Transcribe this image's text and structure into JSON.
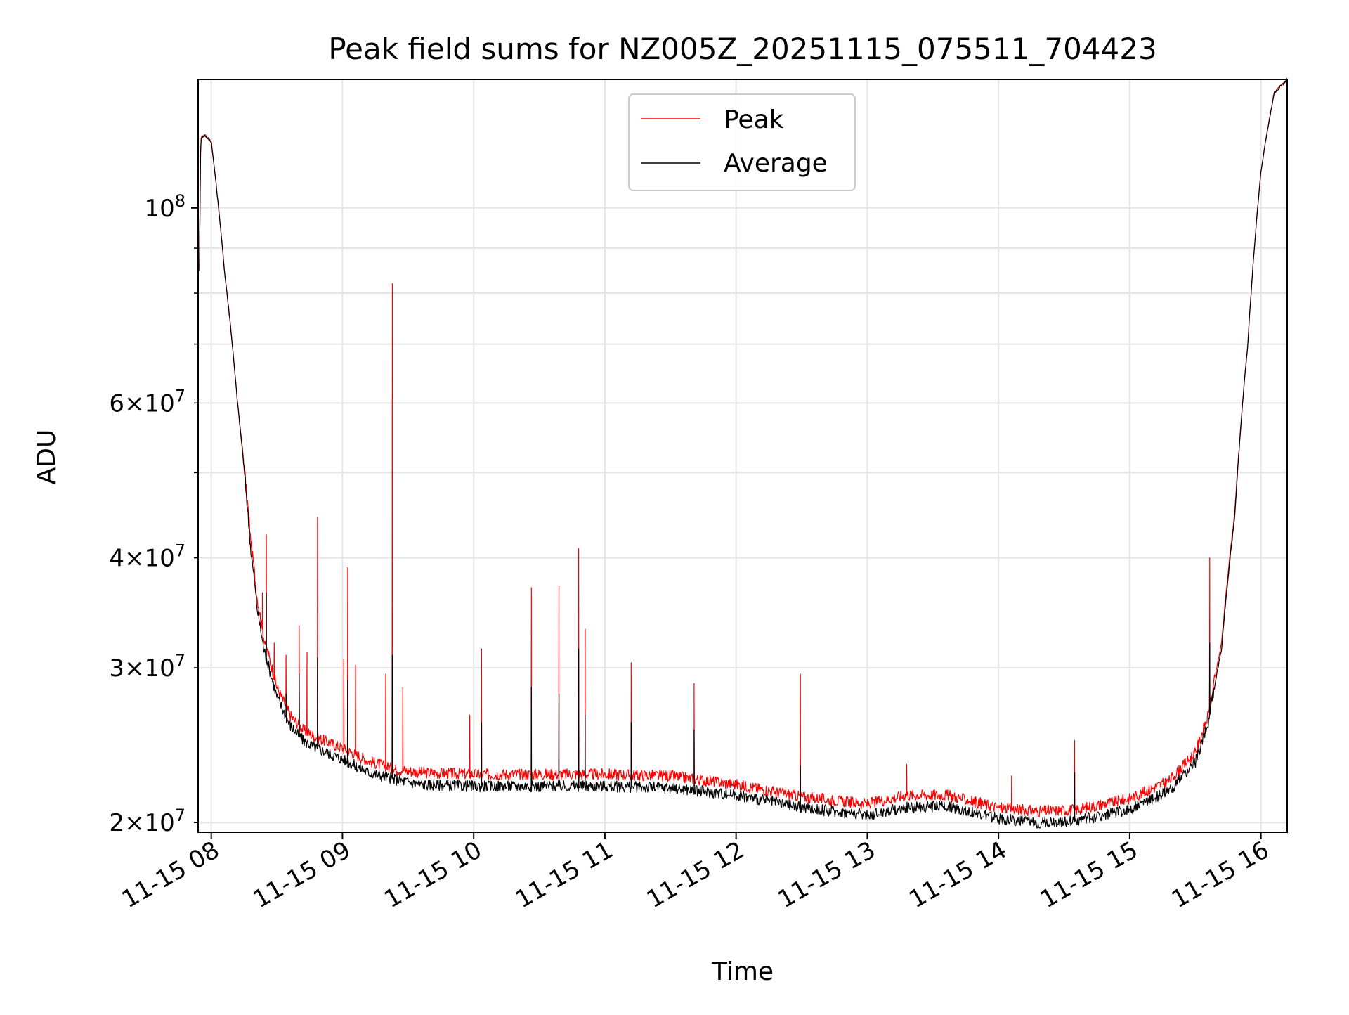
{
  "chart_data": {
    "type": "line",
    "title": "Peak field sums for NZ005Z_20251115_075511_704423",
    "xlabel": "Time",
    "ylabel": "ADU",
    "yscale": "log",
    "xlim": [
      7.9,
      16.2
    ],
    "ylim": [
      19500000,
      140000000
    ],
    "grid": true,
    "legend_position": "upper center",
    "x_ticks": [
      {
        "value": 8,
        "label": "11-15 08"
      },
      {
        "value": 9,
        "label": "11-15 09"
      },
      {
        "value": 10,
        "label": "11-15 10"
      },
      {
        "value": 11,
        "label": "11-15 11"
      },
      {
        "value": 12,
        "label": "11-15 12"
      },
      {
        "value": 13,
        "label": "11-15 13"
      },
      {
        "value": 14,
        "label": "11-15 14"
      },
      {
        "value": 15,
        "label": "11-15 15"
      },
      {
        "value": 16,
        "label": "11-15 16"
      }
    ],
    "y_major_ticks": [
      {
        "value": 100000000,
        "base": "10",
        "exp": "8"
      }
    ],
    "y_minor_ticks": [
      {
        "value": 20000000,
        "mant": "2",
        "base": "10",
        "exp": "7"
      },
      {
        "value": 30000000,
        "mant": "3",
        "base": "10",
        "exp": "7"
      },
      {
        "value": 40000000,
        "mant": "4",
        "base": "10",
        "exp": "7"
      },
      {
        "value": 60000000,
        "mant": "6",
        "base": "10",
        "exp": "7"
      }
    ],
    "y_unlabeled_minor": [
      50000000,
      70000000,
      80000000,
      90000000
    ],
    "series": [
      {
        "name": "Peak",
        "color": "#ff0000",
        "baseline": [
          [
            7.91,
            85000000
          ],
          [
            7.92,
            120000000
          ],
          [
            7.95,
            121000000
          ],
          [
            8.0,
            119000000
          ],
          [
            8.1,
            85000000
          ],
          [
            8.2,
            60000000
          ],
          [
            8.3,
            42000000
          ],
          [
            8.35,
            36000000
          ],
          [
            8.4,
            32500000
          ],
          [
            8.5,
            28500000
          ],
          [
            8.6,
            26500000
          ],
          [
            8.7,
            25500000
          ],
          [
            8.8,
            25000000
          ],
          [
            9.0,
            24300000
          ],
          [
            9.2,
            23500000
          ],
          [
            9.4,
            23000000
          ],
          [
            9.6,
            22800000
          ],
          [
            10.0,
            22700000
          ],
          [
            10.5,
            22700000
          ],
          [
            11.0,
            22700000
          ],
          [
            11.5,
            22600000
          ],
          [
            12.0,
            22100000
          ],
          [
            12.5,
            21400000
          ],
          [
            13.0,
            21000000
          ],
          [
            13.3,
            21500000
          ],
          [
            13.6,
            21500000
          ],
          [
            14.0,
            20800000
          ],
          [
            14.3,
            20600000
          ],
          [
            14.6,
            20700000
          ],
          [
            15.0,
            21300000
          ],
          [
            15.3,
            22300000
          ],
          [
            15.5,
            24000000
          ],
          [
            15.6,
            26500000
          ],
          [
            15.7,
            32000000
          ],
          [
            15.8,
            45000000
          ],
          [
            15.9,
            70000000
          ],
          [
            16.0,
            110000000
          ],
          [
            16.1,
            135000000
          ],
          [
            16.2,
            140000000
          ]
        ],
        "spikes": [
          [
            8.42,
            42500000
          ],
          [
            8.39,
            36500000
          ],
          [
            8.48,
            32000000
          ],
          [
            8.57,
            31000000
          ],
          [
            8.67,
            33500000
          ],
          [
            8.73,
            31200000
          ],
          [
            8.81,
            44500000
          ],
          [
            9.01,
            30700000
          ],
          [
            9.04,
            39000000
          ],
          [
            9.1,
            30200000
          ],
          [
            9.33,
            29500000
          ],
          [
            9.38,
            82000000
          ],
          [
            9.46,
            28500000
          ],
          [
            9.97,
            26500000
          ],
          [
            10.06,
            31500000
          ],
          [
            10.44,
            37000000
          ],
          [
            10.65,
            37200000
          ],
          [
            10.8,
            41000000
          ],
          [
            10.85,
            33200000
          ],
          [
            11.2,
            30400000
          ],
          [
            11.68,
            28800000
          ],
          [
            12.49,
            29500000
          ],
          [
            13.3,
            23300000
          ],
          [
            14.1,
            22600000
          ],
          [
            14.58,
            24800000
          ],
          [
            15.61,
            40000000
          ]
        ]
      },
      {
        "name": "Average",
        "color": "#000000",
        "baseline": [
          [
            7.91,
            85000000
          ],
          [
            7.92,
            120000000
          ],
          [
            7.95,
            121000000
          ],
          [
            8.0,
            119000000
          ],
          [
            8.1,
            85000000
          ],
          [
            8.2,
            60000000
          ],
          [
            8.3,
            41000000
          ],
          [
            8.35,
            35000000
          ],
          [
            8.4,
            31500000
          ],
          [
            8.5,
            27800000
          ],
          [
            8.6,
            25800000
          ],
          [
            8.7,
            24800000
          ],
          [
            8.8,
            24300000
          ],
          [
            9.0,
            23600000
          ],
          [
            9.2,
            22800000
          ],
          [
            9.4,
            22400000
          ],
          [
            9.6,
            22100000
          ],
          [
            10.0,
            22000000
          ],
          [
            10.5,
            22000000
          ],
          [
            11.0,
            22000000
          ],
          [
            11.5,
            21900000
          ],
          [
            12.0,
            21500000
          ],
          [
            12.5,
            20800000
          ],
          [
            13.0,
            20400000
          ],
          [
            13.3,
            20800000
          ],
          [
            13.6,
            20900000
          ],
          [
            14.0,
            20200000
          ],
          [
            14.3,
            20000000
          ],
          [
            14.6,
            20100000
          ],
          [
            15.0,
            20700000
          ],
          [
            15.3,
            21700000
          ],
          [
            15.5,
            23400000
          ],
          [
            15.6,
            26000000
          ],
          [
            15.7,
            31500000
          ],
          [
            15.8,
            44500000
          ],
          [
            15.9,
            70000000
          ],
          [
            16.0,
            110000000
          ],
          [
            16.1,
            135000000
          ],
          [
            16.2,
            140000000
          ]
        ],
        "spikes": [
          [
            8.42,
            36500000
          ],
          [
            8.57,
            28000000
          ],
          [
            8.67,
            29500000
          ],
          [
            8.81,
            30800000
          ],
          [
            9.04,
            29000000
          ],
          [
            9.38,
            31000000
          ],
          [
            10.06,
            26000000
          ],
          [
            10.44,
            28500000
          ],
          [
            10.65,
            28000000
          ],
          [
            10.8,
            31500000
          ],
          [
            10.85,
            26500000
          ],
          [
            11.2,
            26000000
          ],
          [
            11.68,
            25500000
          ],
          [
            12.49,
            23200000
          ],
          [
            14.58,
            22800000
          ],
          [
            15.61,
            32000000
          ]
        ]
      }
    ]
  }
}
